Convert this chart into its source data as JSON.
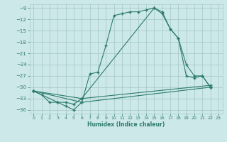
{
  "xlabel": "Humidex (Indice chaleur)",
  "ylabel": "",
  "bg_color": "#cce8e8",
  "grid_color": "#aacccc",
  "line_color": "#2d7a6e",
  "xlim": [
    -0.5,
    23.5
  ],
  "ylim": [
    -37,
    -8
  ],
  "yticks": [
    -36,
    -33,
    -30,
    -27,
    -24,
    -21,
    -18,
    -15,
    -12,
    -9
  ],
  "xticks": [
    0,
    1,
    2,
    3,
    4,
    5,
    6,
    7,
    8,
    9,
    10,
    11,
    12,
    13,
    14,
    15,
    16,
    17,
    18,
    19,
    20,
    21,
    22,
    23
  ],
  "series": [
    {
      "x": [
        0,
        1,
        2,
        3,
        4,
        5,
        6,
        7,
        8,
        9,
        10,
        11,
        12,
        13,
        14,
        15,
        16,
        17,
        18,
        19,
        20,
        21,
        22
      ],
      "y": [
        -31,
        -32,
        -34,
        -34,
        -35,
        -36,
        -34,
        -26.5,
        -26,
        -19,
        -11,
        -10.5,
        -10,
        -10,
        -9.5,
        -9,
        -10,
        -14.5,
        -17,
        -24,
        -27,
        -27,
        -30
      ]
    },
    {
      "x": [
        0,
        3,
        4,
        5,
        6,
        15,
        16,
        17,
        18,
        19,
        20,
        21,
        22
      ],
      "y": [
        -31,
        -34,
        -34,
        -34.5,
        -33,
        -9,
        -10.5,
        -14.5,
        -17,
        -27,
        -27.5,
        -27,
        -30
      ]
    },
    {
      "x": [
        0,
        6,
        22
      ],
      "y": [
        -31,
        -33,
        -29.5
      ]
    },
    {
      "x": [
        0,
        6,
        22
      ],
      "y": [
        -31,
        -34,
        -30
      ]
    }
  ]
}
